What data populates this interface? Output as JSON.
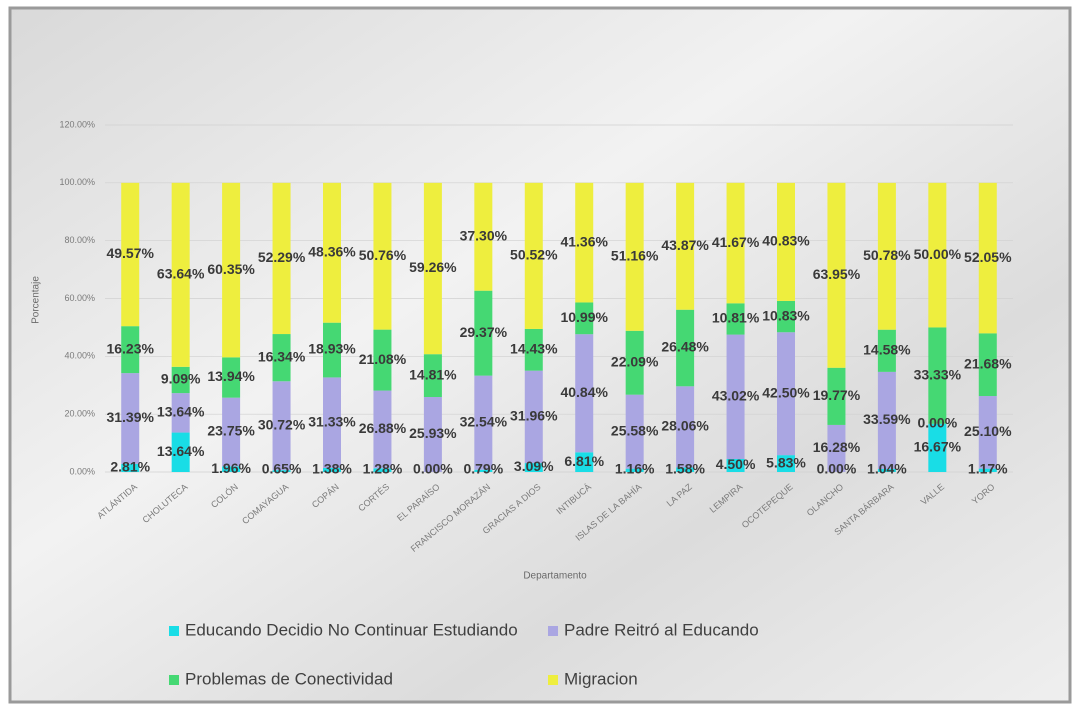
{
  "chart_data": {
    "type": "stacked_bar",
    "x_label": "Departamento",
    "y_label": "Porcentaje",
    "categories": [
      "ATLÁNTIDA",
      "CHOLUTECA",
      "COLÓN",
      "COMAYAGUA",
      "COPÁN",
      "CORTÉS",
      "EL PARAÍSO",
      "FRANCISCO MORAZÁN",
      "GRACIAS A DIOS",
      "INTIBUCÁ",
      "ISLAS DE LA BAHÍA",
      "LA PAZ",
      "LEMPIRA",
      "OCOTEPEQUE",
      "OLANCHO",
      "SANTA BÁRBARA",
      "VALLE",
      "YORO"
    ],
    "series": [
      {
        "name": "Educando Decidio No Continuar Estudiando",
        "color": "#19dde6",
        "values": [
          2.81,
          13.64,
          1.96,
          0.65,
          1.38,
          1.28,
          0.0,
          0.79,
          3.09,
          6.81,
          1.16,
          1.58,
          4.5,
          5.83,
          0.0,
          1.04,
          16.67,
          1.17
        ],
        "value_labels": [
          "2.81%",
          "13.64%",
          "1.96%",
          "0.65%",
          "1.38%",
          "1.28%",
          "0.00%",
          "0.79%",
          "3.09%",
          "6.81%",
          "1.16%",
          "1.58%",
          "4.50%",
          "5.83%",
          "0.00%",
          "1.04%",
          "16.67%",
          "1.17%"
        ]
      },
      {
        "name": "Padre Reitró al Educando",
        "color": "#aaa6e2",
        "values": [
          31.39,
          13.64,
          23.75,
          30.72,
          31.33,
          26.88,
          25.93,
          32.54,
          31.96,
          40.84,
          25.58,
          28.06,
          43.02,
          42.5,
          16.28,
          33.59,
          0.0,
          25.1
        ],
        "value_labels": [
          "31.39%",
          "13.64%",
          "23.75%",
          "30.72%",
          "31.33%",
          "26.88%",
          "25.93%",
          "32.54%",
          "31.96%",
          "40.84%",
          "25.58%",
          "28.06%",
          "43.02%",
          "42.50%",
          "16.28%",
          "33.59%",
          "0.00%",
          "25.10%"
        ]
      },
      {
        "name": "Problemas de Conectividad",
        "color": "#45d873",
        "values": [
          16.23,
          9.09,
          13.94,
          16.34,
          18.93,
          21.08,
          14.81,
          29.37,
          14.43,
          10.99,
          22.09,
          26.48,
          10.81,
          10.83,
          19.77,
          14.58,
          33.33,
          21.68
        ],
        "value_labels": [
          "16.23%",
          "9.09%",
          "13.94%",
          "16.34%",
          "18.93%",
          "21.08%",
          "14.81%",
          "29.37%",
          "14.43%",
          "10.99%",
          "22.09%",
          "26.48%",
          "10.81%",
          "10.83%",
          "19.77%",
          "14.58%",
          "33.33%",
          "21.68%"
        ]
      },
      {
        "name": "Migracion",
        "color": "#eeee3e",
        "values": [
          49.57,
          63.64,
          60.35,
          52.29,
          48.36,
          50.76,
          59.26,
          37.3,
          50.52,
          41.36,
          51.16,
          43.87,
          41.67,
          40.83,
          63.95,
          50.78,
          50.0,
          52.05
        ],
        "value_labels": [
          "49.57%",
          "63.64%",
          "60.35%",
          "52.29%",
          "48.36%",
          "50.76%",
          "59.26%",
          "37.30%",
          "50.52%",
          "41.36%",
          "51.16%",
          "43.87%",
          "41.67%",
          "40.83%",
          "63.95%",
          "50.78%",
          "50.00%",
          "52.05%"
        ]
      }
    ],
    "ylim": [
      0,
      120
    ],
    "yticks": [
      {
        "value": 0,
        "label": "0.00%"
      },
      {
        "value": 20,
        "label": "20.00%"
      },
      {
        "value": 40,
        "label": "40.00%"
      },
      {
        "value": 60,
        "label": "60.00%"
      },
      {
        "value": 80,
        "label": "80.00%"
      },
      {
        "value": 100,
        "label": "100.00%"
      },
      {
        "value": 120,
        "label": "120.00%"
      }
    ],
    "grid": true
  }
}
